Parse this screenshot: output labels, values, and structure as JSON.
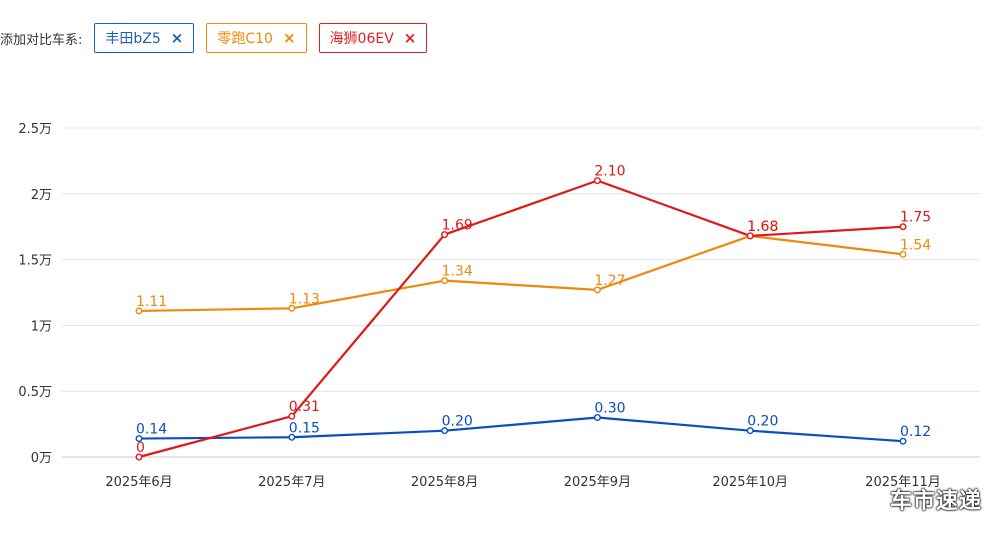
{
  "compare": {
    "label": "添加对比车系:",
    "chips": [
      {
        "name": "丰田bZ5",
        "color": "#1a5fb4",
        "close": "×"
      },
      {
        "name": "零跑C10",
        "color": "#f0880a",
        "close": "×"
      },
      {
        "name": "海狮06EV",
        "color": "#e02020",
        "close": "×"
      }
    ]
  },
  "chart_data": {
    "type": "line",
    "title": "",
    "xlabel": "",
    "ylabel": "",
    "categories": [
      "2025年6月",
      "2025年7月",
      "2025年8月",
      "2025年9月",
      "2025年10月",
      "2025年11月"
    ],
    "yticks": [
      0,
      0.5,
      1,
      1.5,
      2,
      2.5
    ],
    "ytick_labels": [
      "0万",
      "0.5万",
      "1万",
      "1.5万",
      "2万",
      "2.5万"
    ],
    "ylim": [
      0,
      2.5
    ],
    "grid": true,
    "series": [
      {
        "name": "丰田bZ5",
        "color": "#0a4fc2",
        "values": [
          0.14,
          0.15,
          0.2,
          0.3,
          0.2,
          0.12
        ],
        "labels": [
          "0.14",
          "0.15",
          "0.20",
          "0.30",
          "0.20",
          "0.12"
        ]
      },
      {
        "name": "零跑C10",
        "color": "#f0880a",
        "values": [
          1.11,
          1.13,
          1.34,
          1.27,
          1.68,
          1.54
        ],
        "labels": [
          "1.11",
          "1.13",
          "1.34",
          "1.27",
          "1.68",
          "1.54"
        ]
      },
      {
        "name": "海狮06EV",
        "color": "#e01818",
        "values": [
          0,
          0.31,
          1.69,
          2.1,
          1.68,
          1.75
        ],
        "labels": [
          "0",
          "0.31",
          "1.69",
          "2.10",
          "1.68",
          "1.75"
        ]
      }
    ]
  },
  "watermark": "车市速递"
}
